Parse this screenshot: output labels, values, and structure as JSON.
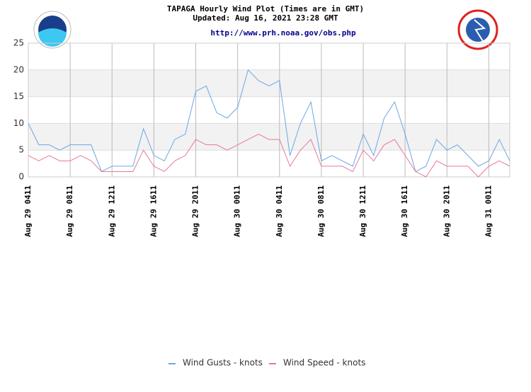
{
  "chart_data": {
    "type": "line",
    "title": "TAPAGA Hourly Wind Plot (Times are in GMT)",
    "subtitle": "Updated: Aug 16, 2021 23:28 GMT",
    "link": "http://www.prh.noaa.gov/obs.php",
    "categories": [
      "Aug 29 0411",
      null,
      null,
      null,
      "Aug 29 0811",
      null,
      null,
      null,
      "Aug 29 1211",
      null,
      null,
      null,
      "Aug 29 1611",
      null,
      null,
      null,
      "Aug 29 2011",
      null,
      null,
      null,
      "Aug 30 0011",
      null,
      null,
      null,
      "Aug 30 0411",
      null,
      null,
      null,
      "Aug 30 0811",
      null,
      null,
      null,
      "Aug 30 1211",
      null,
      null,
      null,
      "Aug 30 1611",
      null,
      null,
      null,
      "Aug 30 2011",
      null,
      null,
      null,
      "Aug 31 0011",
      null,
      null
    ],
    "series": [
      {
        "name": "Wind Gusts - knots",
        "color": "#6aa6e6",
        "values": [
          10,
          6,
          6,
          5,
          6,
          6,
          6,
          1,
          2,
          2,
          2,
          9,
          4,
          3,
          7,
          8,
          16,
          17,
          12,
          11,
          13,
          20,
          18,
          17,
          18,
          4,
          10,
          14,
          3,
          4,
          3,
          2,
          8,
          4,
          11,
          14,
          8,
          1,
          2,
          7,
          5,
          6,
          4,
          2,
          3,
          7,
          3
        ]
      },
      {
        "name": "Wind Speed - knots",
        "color": "#e8789c",
        "values": [
          4,
          3,
          4,
          3,
          3,
          4,
          3,
          1,
          1,
          1,
          1,
          5,
          2,
          1,
          3,
          4,
          7,
          6,
          6,
          5,
          6,
          7,
          8,
          7,
          7,
          2,
          5,
          7,
          2,
          2,
          2,
          1,
          5,
          3,
          6,
          7,
          4,
          1,
          0,
          3,
          2,
          2,
          2,
          0,
          2,
          3,
          2
        ]
      }
    ],
    "ylim": [
      0,
      25
    ],
    "yticks": [
      0,
      5,
      10,
      15,
      20,
      25
    ],
    "grid": true
  }
}
